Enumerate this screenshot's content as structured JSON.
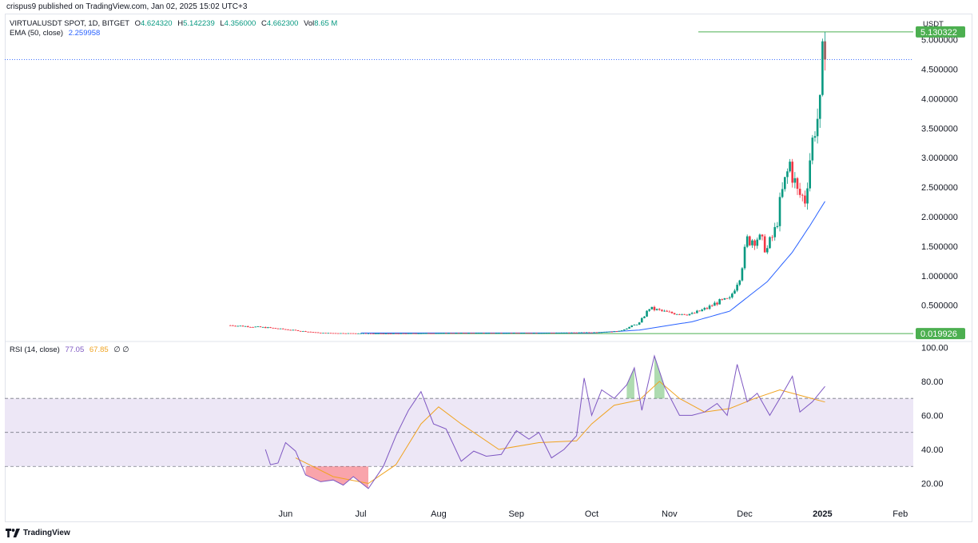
{
  "publisher": "crispus9 published on TradingView.com, Jan 02, 2025 15:02 UTC+3",
  "legend": {
    "symbol": "VIRTUALUSDT SPOT, 1D, BITGET",
    "o_label": "O",
    "o_value": "4.624320",
    "h_label": "H",
    "h_value": "5.142239",
    "l_label": "L",
    "l_value": "4.356000",
    "c_label": "C",
    "c_value": "4.662300",
    "vol_label": "Vol",
    "vol_value": "8.65 M",
    "ema_label": "EMA (50, close)",
    "ema_value": "2.259958"
  },
  "rsi_legend": {
    "label": "RSI (14, close)",
    "rsi_value": "77.05",
    "ma_value": "67.85",
    "extra": "∅ ∅"
  },
  "currency": "USDT",
  "footer": {
    "brand": "TradingView",
    "logo_icon": "tradingview-logo-icon"
  },
  "colors": {
    "up": "#089981",
    "down": "#f23645",
    "ema": "#2962ff",
    "rsi": "#7e57c2",
    "rsi_ma": "#f0a321",
    "hline": "#4caf50",
    "band": "#ede7f6"
  },
  "chart_data": [
    {
      "type": "candlestick",
      "title": "VIRTUALUSDT SPOT, 1D, BITGET",
      "y_axis_ticks": [
        "0.500000",
        "1.000000",
        "1.500000",
        "2.000000",
        "2.500000",
        "3.000000",
        "3.500000",
        "4.000000",
        "4.500000",
        "5.000000"
      ],
      "ylim": [
        -0.1,
        5.4
      ],
      "x_axis_ticks": [
        "Jun",
        "Jul",
        "Aug",
        "Sep",
        "Oct",
        "Nov",
        "Dec",
        "2025",
        "Feb"
      ],
      "x_range": [
        "2024-05-08",
        "2025-02-10"
      ],
      "price_labels": [
        {
          "label": "5.130322",
          "value": 5.130322
        },
        {
          "label": "0.019926",
          "value": 0.019926
        }
      ],
      "last_price": 4.6623,
      "close_series": {
        "start": "2024-05-10",
        "knots": [
          [
            "2024-05-10",
            0.16
          ],
          [
            "2024-05-25",
            0.12
          ],
          [
            "2024-06-15",
            0.03
          ],
          [
            "2024-07-10",
            0.02
          ],
          [
            "2024-08-10",
            0.03
          ],
          [
            "2024-09-10",
            0.03
          ],
          [
            "2024-10-01",
            0.04
          ],
          [
            "2024-10-12",
            0.06
          ],
          [
            "2024-10-20",
            0.2
          ],
          [
            "2024-10-24",
            0.45
          ],
          [
            "2024-11-01",
            0.37
          ],
          [
            "2024-11-10",
            0.35
          ],
          [
            "2024-11-16",
            0.45
          ],
          [
            "2024-11-20",
            0.55
          ],
          [
            "2024-11-25",
            0.6
          ],
          [
            "2024-11-29",
            1.0
          ],
          [
            "2024-12-02",
            1.6
          ],
          [
            "2024-12-06",
            1.65
          ],
          [
            "2024-12-10",
            1.45
          ],
          [
            "2024-12-13",
            1.75
          ],
          [
            "2024-12-16",
            2.4
          ],
          [
            "2024-12-19",
            2.9
          ],
          [
            "2024-12-22",
            2.4
          ],
          [
            "2024-12-25",
            2.3
          ],
          [
            "2024-12-27",
            3.0
          ],
          [
            "2024-12-29",
            3.55
          ],
          [
            "2024-12-31",
            3.8
          ],
          [
            "2025-01-01",
            4.62
          ],
          [
            "2025-01-02",
            4.6623
          ]
        ]
      },
      "ema": {
        "name": "EMA (50, close)",
        "knots": [
          [
            "2024-07-01",
            0.03
          ],
          [
            "2024-10-01",
            0.03
          ],
          [
            "2024-10-20",
            0.08
          ],
          [
            "2024-11-10",
            0.22
          ],
          [
            "2024-11-25",
            0.4
          ],
          [
            "2024-12-10",
            0.9
          ],
          [
            "2024-12-20",
            1.4
          ],
          [
            "2024-12-27",
            1.85
          ],
          [
            "2025-01-02",
            2.26
          ]
        ]
      }
    },
    {
      "type": "line",
      "title": "RSI (14, close)",
      "y_axis_ticks": [
        "20.00",
        "40.00",
        "60.00",
        "80.00",
        "100.00"
      ],
      "ylim": [
        8,
        103
      ],
      "bands": {
        "upper": 70,
        "middle": 50,
        "lower": 30
      },
      "rsi": {
        "name": "RSI",
        "knots": [
          [
            "2024-05-24",
            40
          ],
          [
            "2024-05-26",
            31
          ],
          [
            "2024-05-29",
            32
          ],
          [
            "2024-06-01",
            44
          ],
          [
            "2024-06-05",
            39
          ],
          [
            "2024-06-09",
            25
          ],
          [
            "2024-06-15",
            21
          ],
          [
            "2024-06-20",
            22
          ],
          [
            "2024-06-24",
            19
          ],
          [
            "2024-06-28",
            24
          ],
          [
            "2024-07-04",
            17
          ],
          [
            "2024-07-10",
            30
          ],
          [
            "2024-07-15",
            48
          ],
          [
            "2024-07-20",
            63
          ],
          [
            "2024-07-25",
            74
          ],
          [
            "2024-07-30",
            55
          ],
          [
            "2024-08-04",
            52
          ],
          [
            "2024-08-10",
            33
          ],
          [
            "2024-08-15",
            39
          ],
          [
            "2024-08-20",
            36
          ],
          [
            "2024-08-26",
            37
          ],
          [
            "2024-09-01",
            51
          ],
          [
            "2024-09-06",
            46
          ],
          [
            "2024-09-10",
            50
          ],
          [
            "2024-09-15",
            35
          ],
          [
            "2024-09-20",
            40
          ],
          [
            "2024-09-25",
            48
          ],
          [
            "2024-09-28",
            82
          ],
          [
            "2024-10-01",
            60
          ],
          [
            "2024-10-05",
            75
          ],
          [
            "2024-10-10",
            70
          ],
          [
            "2024-10-15",
            78
          ],
          [
            "2024-10-18",
            88
          ],
          [
            "2024-10-21",
            63
          ],
          [
            "2024-10-26",
            95
          ],
          [
            "2024-10-30",
            77
          ],
          [
            "2024-11-05",
            60
          ],
          [
            "2024-11-10",
            60
          ],
          [
            "2024-11-15",
            62
          ],
          [
            "2024-11-20",
            67
          ],
          [
            "2024-11-24",
            60
          ],
          [
            "2024-11-28",
            90
          ],
          [
            "2024-12-02",
            68
          ],
          [
            "2024-12-06",
            73
          ],
          [
            "2024-12-11",
            60
          ],
          [
            "2024-12-15",
            70
          ],
          [
            "2024-12-20",
            83
          ],
          [
            "2024-12-23",
            62
          ],
          [
            "2024-12-28",
            68
          ],
          [
            "2025-01-02",
            77.05
          ]
        ]
      },
      "rsi_ma": {
        "name": "RSI-based MA",
        "knots": [
          [
            "2024-06-05",
            35
          ],
          [
            "2024-06-20",
            24
          ],
          [
            "2024-07-04",
            20
          ],
          [
            "2024-07-15",
            31
          ],
          [
            "2024-07-25",
            55
          ],
          [
            "2024-08-01",
            65
          ],
          [
            "2024-08-10",
            55
          ],
          [
            "2024-08-25",
            40
          ],
          [
            "2024-09-10",
            44
          ],
          [
            "2024-09-25",
            45
          ],
          [
            "2024-10-01",
            55
          ],
          [
            "2024-10-10",
            66
          ],
          [
            "2024-10-20",
            69
          ],
          [
            "2024-10-28",
            80
          ],
          [
            "2024-11-05",
            70
          ],
          [
            "2024-11-15",
            62
          ],
          [
            "2024-11-25",
            64
          ],
          [
            "2024-12-05",
            70
          ],
          [
            "2024-12-15",
            75
          ],
          [
            "2024-12-25",
            71
          ],
          [
            "2025-01-02",
            67.85
          ]
        ]
      }
    }
  ]
}
